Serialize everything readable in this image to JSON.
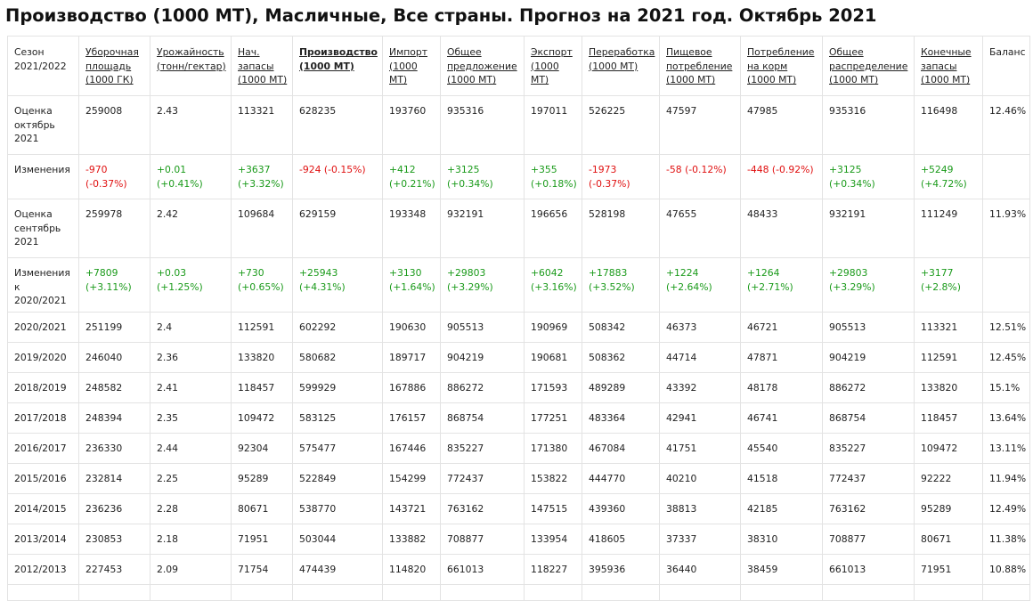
{
  "title": "Производство (1000 МТ), Масличные, Все страны. Прогноз на 2021 год. Октябрь 2021",
  "headers": [
    {
      "label": "Сезон 2021/2022",
      "link": false
    },
    {
      "label": "Уборочная площадь (1000 ГК)",
      "link": true
    },
    {
      "label": "Урожайность (тонн/гектар)",
      "link": true
    },
    {
      "label": "Нач. запасы (1000 МТ)",
      "link": true
    },
    {
      "label": "Производство (1000 МТ)",
      "link": true,
      "active": true
    },
    {
      "label": "Импорт (1000 МТ)",
      "link": true
    },
    {
      "label": "Общее предложение (1000 МТ)",
      "link": true
    },
    {
      "label": "Экспорт (1000 МТ)",
      "link": true
    },
    {
      "label": "Переработка (1000 МТ)",
      "link": true
    },
    {
      "label": "Пищевое потребление (1000 МТ)",
      "link": true
    },
    {
      "label": "Потребление на корм (1000 МТ)",
      "link": true
    },
    {
      "label": "Общее распределение (1000 МТ)",
      "link": true
    },
    {
      "label": "Конечные запасы (1000 МТ)",
      "link": true
    },
    {
      "label": "Баланс",
      "link": false
    }
  ],
  "rows": [
    {
      "size": "tall",
      "label": "Оценка октябрь 2021",
      "cells": [
        {
          "text": "259008"
        },
        {
          "text": "2.43"
        },
        {
          "text": "113321"
        },
        {
          "text": "628235"
        },
        {
          "text": "193760"
        },
        {
          "text": "935316"
        },
        {
          "text": "197011"
        },
        {
          "text": "526225"
        },
        {
          "text": "47597"
        },
        {
          "text": "47985"
        },
        {
          "text": "935316"
        },
        {
          "text": "116498"
        },
        {
          "text": "12.46%"
        }
      ]
    },
    {
      "size": "mid",
      "label": "Изменения",
      "cells": [
        {
          "text": "-970 (-0.37%)",
          "tone": "neg"
        },
        {
          "text": "+0.01 (+0.41%)",
          "tone": "pos"
        },
        {
          "text": "+3637 (+3.32%)",
          "tone": "pos"
        },
        {
          "text": "-924 (-0.15%)",
          "tone": "neg"
        },
        {
          "text": "+412 (+0.21%)",
          "tone": "pos"
        },
        {
          "text": "+3125 (+0.34%)",
          "tone": "pos"
        },
        {
          "text": "+355 (+0.18%)",
          "tone": "pos"
        },
        {
          "text": "-1973 (-0.37%)",
          "tone": "neg"
        },
        {
          "text": "-58 (-0.12%)",
          "tone": "neg"
        },
        {
          "text": "-448 (-0.92%)",
          "tone": "neg"
        },
        {
          "text": "+3125 (+0.34%)",
          "tone": "pos"
        },
        {
          "text": "+5249 (+4.72%)",
          "tone": "pos"
        },
        {
          "text": ""
        }
      ]
    },
    {
      "size": "tall",
      "label": "Оценка сентябрь 2021",
      "cells": [
        {
          "text": "259978"
        },
        {
          "text": "2.42"
        },
        {
          "text": "109684"
        },
        {
          "text": "629159"
        },
        {
          "text": "193348"
        },
        {
          "text": "932191"
        },
        {
          "text": "196656"
        },
        {
          "text": "528198"
        },
        {
          "text": "47655"
        },
        {
          "text": "48433"
        },
        {
          "text": "932191"
        },
        {
          "text": "111249"
        },
        {
          "text": "11.93%"
        }
      ]
    },
    {
      "size": "mid",
      "label": "Изменения к 2020/2021",
      "cells": [
        {
          "text": "+7809 (+3.11%)",
          "tone": "pos"
        },
        {
          "text": "+0.03 (+1.25%)",
          "tone": "pos"
        },
        {
          "text": "+730 (+0.65%)",
          "tone": "pos"
        },
        {
          "text": "+25943 (+4.31%)",
          "tone": "pos"
        },
        {
          "text": "+3130 (+1.64%)",
          "tone": "pos"
        },
        {
          "text": "+29803 (+3.29%)",
          "tone": "pos"
        },
        {
          "text": "+6042 (+3.16%)",
          "tone": "pos"
        },
        {
          "text": "+17883 (+3.52%)",
          "tone": "pos"
        },
        {
          "text": "+1224 (+2.64%)",
          "tone": "pos"
        },
        {
          "text": "+1264 (+2.71%)",
          "tone": "pos"
        },
        {
          "text": "+29803 (+3.29%)",
          "tone": "pos"
        },
        {
          "text": "+3177 (+2.8%)",
          "tone": "pos"
        },
        {
          "text": ""
        }
      ]
    },
    {
      "size": "short",
      "label": "2020/2021",
      "cells": [
        {
          "text": "251199"
        },
        {
          "text": "2.4"
        },
        {
          "text": "112591"
        },
        {
          "text": "602292"
        },
        {
          "text": "190630"
        },
        {
          "text": "905513"
        },
        {
          "text": "190969"
        },
        {
          "text": "508342"
        },
        {
          "text": "46373"
        },
        {
          "text": "46721"
        },
        {
          "text": "905513"
        },
        {
          "text": "113321"
        },
        {
          "text": "12.51%"
        }
      ]
    },
    {
      "size": "short",
      "label": "2019/2020",
      "cells": [
        {
          "text": "246040"
        },
        {
          "text": "2.36"
        },
        {
          "text": "133820"
        },
        {
          "text": "580682"
        },
        {
          "text": "189717"
        },
        {
          "text": "904219"
        },
        {
          "text": "190681"
        },
        {
          "text": "508362"
        },
        {
          "text": "44714"
        },
        {
          "text": "47871"
        },
        {
          "text": "904219"
        },
        {
          "text": "112591"
        },
        {
          "text": "12.45%"
        }
      ]
    },
    {
      "size": "short",
      "label": "2018/2019",
      "cells": [
        {
          "text": "248582"
        },
        {
          "text": "2.41"
        },
        {
          "text": "118457"
        },
        {
          "text": "599929"
        },
        {
          "text": "167886"
        },
        {
          "text": "886272"
        },
        {
          "text": "171593"
        },
        {
          "text": "489289"
        },
        {
          "text": "43392"
        },
        {
          "text": "48178"
        },
        {
          "text": "886272"
        },
        {
          "text": "133820"
        },
        {
          "text": "15.1%"
        }
      ]
    },
    {
      "size": "short",
      "label": "2017/2018",
      "cells": [
        {
          "text": "248394"
        },
        {
          "text": "2.35"
        },
        {
          "text": "109472"
        },
        {
          "text": "583125"
        },
        {
          "text": "176157"
        },
        {
          "text": "868754"
        },
        {
          "text": "177251"
        },
        {
          "text": "483364"
        },
        {
          "text": "42941"
        },
        {
          "text": "46741"
        },
        {
          "text": "868754"
        },
        {
          "text": "118457"
        },
        {
          "text": "13.64%"
        }
      ]
    },
    {
      "size": "short",
      "label": "2016/2017",
      "cells": [
        {
          "text": "236330"
        },
        {
          "text": "2.44"
        },
        {
          "text": "92304"
        },
        {
          "text": "575477"
        },
        {
          "text": "167446"
        },
        {
          "text": "835227"
        },
        {
          "text": "171380"
        },
        {
          "text": "467084"
        },
        {
          "text": "41751"
        },
        {
          "text": "45540"
        },
        {
          "text": "835227"
        },
        {
          "text": "109472"
        },
        {
          "text": "13.11%"
        }
      ]
    },
    {
      "size": "short",
      "label": "2015/2016",
      "cells": [
        {
          "text": "232814"
        },
        {
          "text": "2.25"
        },
        {
          "text": "95289"
        },
        {
          "text": "522849"
        },
        {
          "text": "154299"
        },
        {
          "text": "772437"
        },
        {
          "text": "153822"
        },
        {
          "text": "444770"
        },
        {
          "text": "40210"
        },
        {
          "text": "41518"
        },
        {
          "text": "772437"
        },
        {
          "text": "92222"
        },
        {
          "text": "11.94%"
        }
      ]
    },
    {
      "size": "short",
      "label": "2014/2015",
      "cells": [
        {
          "text": "236236"
        },
        {
          "text": "2.28"
        },
        {
          "text": "80671"
        },
        {
          "text": "538770"
        },
        {
          "text": "143721"
        },
        {
          "text": "763162"
        },
        {
          "text": "147515"
        },
        {
          "text": "439360"
        },
        {
          "text": "38813"
        },
        {
          "text": "42185"
        },
        {
          "text": "763162"
        },
        {
          "text": "95289"
        },
        {
          "text": "12.49%"
        }
      ]
    },
    {
      "size": "short",
      "label": "2013/2014",
      "cells": [
        {
          "text": "230853"
        },
        {
          "text": "2.18"
        },
        {
          "text": "71951"
        },
        {
          "text": "503044"
        },
        {
          "text": "133882"
        },
        {
          "text": "708877"
        },
        {
          "text": "133954"
        },
        {
          "text": "418605"
        },
        {
          "text": "37337"
        },
        {
          "text": "38310"
        },
        {
          "text": "708877"
        },
        {
          "text": "80671"
        },
        {
          "text": "11.38%"
        }
      ]
    },
    {
      "size": "short",
      "label": "2012/2013",
      "cells": [
        {
          "text": "227453"
        },
        {
          "text": "2.09"
        },
        {
          "text": "71754"
        },
        {
          "text": "474439"
        },
        {
          "text": "114820"
        },
        {
          "text": "661013"
        },
        {
          "text": "118227"
        },
        {
          "text": "395936"
        },
        {
          "text": "36440"
        },
        {
          "text": "38459"
        },
        {
          "text": "661013"
        },
        {
          "text": "71951"
        },
        {
          "text": "10.88%"
        }
      ]
    }
  ],
  "colors": {
    "positive": "#1a9a1a",
    "negative": "#e01010",
    "grid": "#e3e3e3"
  }
}
